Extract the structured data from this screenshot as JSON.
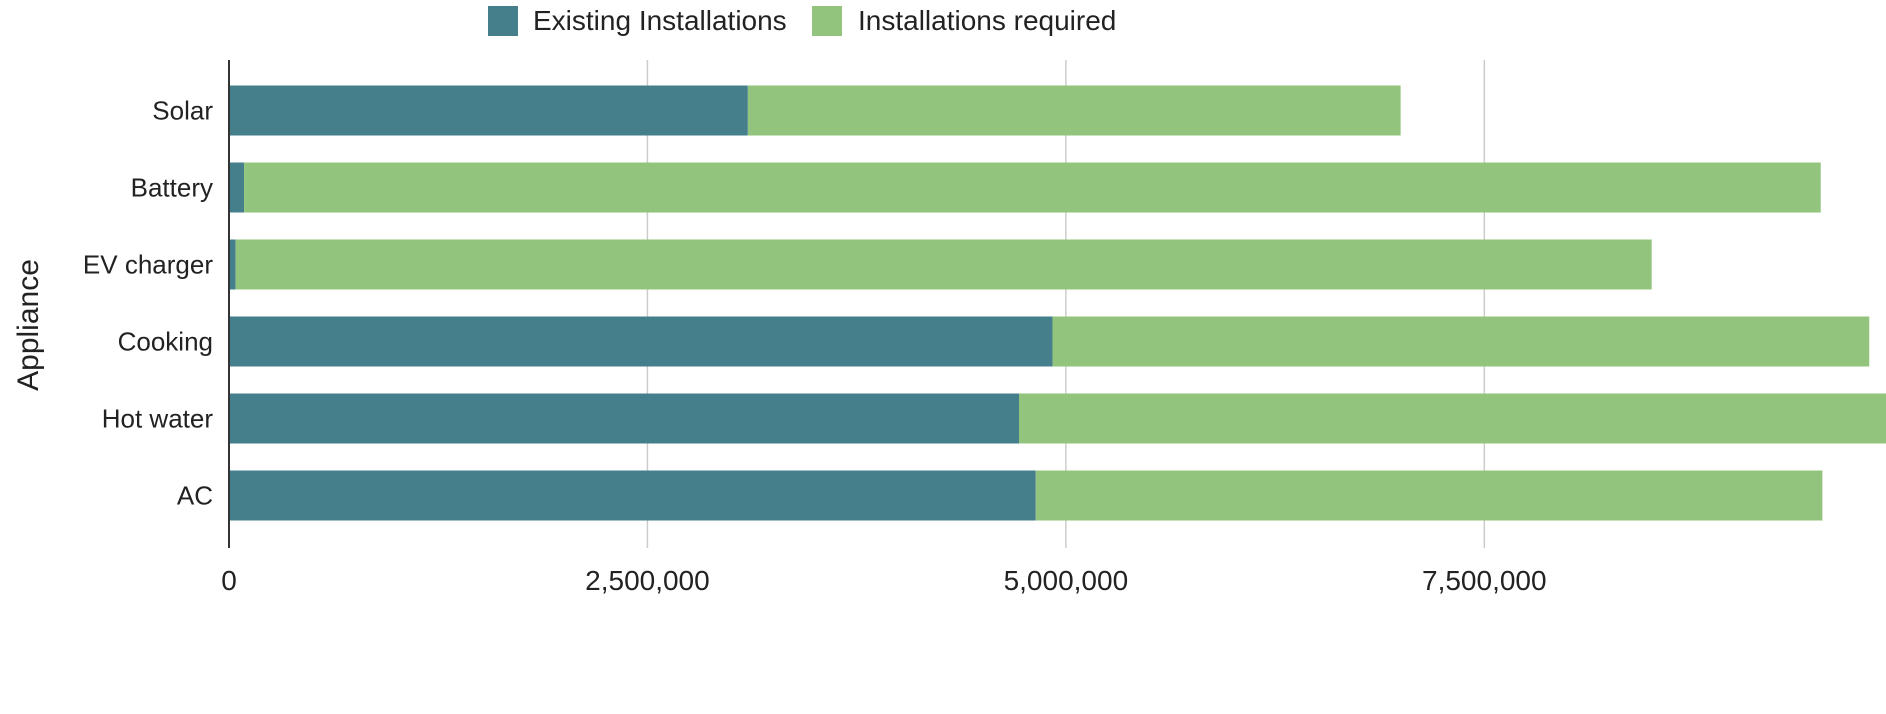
{
  "chart_data": {
    "type": "bar",
    "orientation": "horizontal",
    "stacked": true,
    "title": "",
    "xlabel": "",
    "ylabel": "Appliance",
    "categories": [
      "Solar",
      "Battery",
      "EV charger",
      "Cooking",
      "Hot water",
      "AC"
    ],
    "series": [
      {
        "name": "Existing Installations",
        "color": "#467f8c",
        "values": [
          3100000,
          90000,
          40000,
          4920000,
          4720000,
          4820000
        ]
      },
      {
        "name": "Installations required",
        "color": "#93c47d",
        "values": [
          3900000,
          9420000,
          8460000,
          4880000,
          5180000,
          4700000
        ]
      }
    ],
    "xlim": [
      0,
      9900000
    ],
    "xticks": [
      0,
      2500000,
      5000000,
      7500000
    ],
    "xtick_labels": [
      "0",
      "2,500,000",
      "5,000,000",
      "7,500,000"
    ],
    "legend_position": "top-center",
    "grid": "vertical"
  }
}
